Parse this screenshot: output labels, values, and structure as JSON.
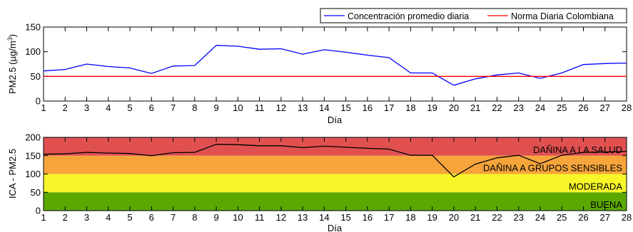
{
  "legend": {
    "items": [
      {
        "label": "Concentración promedio diaria",
        "color": "#0000ff"
      },
      {
        "label": "Norma Diaria Colombiana",
        "color": "#ff0000"
      }
    ]
  },
  "chart_data": [
    {
      "type": "line",
      "xlabel": "Día",
      "ylabel": "PM2.5 (µg/m³)",
      "ylabel_base": "PM2.5 (µg/m",
      "ylabel_sup": "3",
      "ylabel_tail": ")",
      "xlim": [
        1,
        28
      ],
      "ylim": [
        0,
        150
      ],
      "xticks": [
        1,
        2,
        3,
        4,
        5,
        6,
        7,
        8,
        9,
        10,
        11,
        12,
        13,
        14,
        15,
        16,
        17,
        18,
        19,
        20,
        21,
        22,
        23,
        24,
        25,
        26,
        27,
        28
      ],
      "yticks": [
        0,
        50,
        100,
        150
      ],
      "grid": false,
      "legend_position": "top-right",
      "x": [
        1,
        2,
        3,
        4,
        5,
        6,
        7,
        8,
        9,
        10,
        11,
        12,
        13,
        14,
        15,
        16,
        17,
        18,
        19,
        20,
        21,
        22,
        23,
        24,
        25,
        26,
        27,
        28
      ],
      "series": [
        {
          "name": "Concentración promedio diaria",
          "color": "#0000ff",
          "values": [
            61,
            64,
            75,
            70,
            67,
            56,
            71,
            72,
            113,
            111,
            105,
            106,
            95,
            104,
            99,
            93,
            88,
            57,
            57,
            32,
            45,
            53,
            57,
            46,
            57,
            74,
            76,
            77
          ]
        },
        {
          "name": "Norma Diaria Colombiana",
          "color": "#ff0000",
          "values": [
            50,
            50,
            50,
            50,
            50,
            50,
            50,
            50,
            50,
            50,
            50,
            50,
            50,
            50,
            50,
            50,
            50,
            50,
            50,
            50,
            50,
            50,
            50,
            50,
            50,
            50,
            50,
            50
          ]
        }
      ]
    },
    {
      "type": "line",
      "xlabel": "Día",
      "ylabel": "ICA - PM2.5",
      "xlim": [
        1,
        28
      ],
      "ylim": [
        0,
        200
      ],
      "xticks": [
        1,
        2,
        3,
        4,
        5,
        6,
        7,
        8,
        9,
        10,
        11,
        12,
        13,
        14,
        15,
        16,
        17,
        18,
        19,
        20,
        21,
        22,
        23,
        24,
        25,
        26,
        27,
        28
      ],
      "yticks": [
        0,
        50,
        100,
        150,
        200
      ],
      "grid": false,
      "x": [
        1,
        2,
        3,
        4,
        5,
        6,
        7,
        8,
        9,
        10,
        11,
        12,
        13,
        14,
        15,
        16,
        17,
        18,
        19,
        20,
        21,
        22,
        23,
        24,
        25,
        26,
        27,
        28
      ],
      "bands": [
        {
          "label": "BUENA",
          "from": 0,
          "to": 50,
          "color": "#5ba800"
        },
        {
          "label": "MODERADA",
          "from": 50,
          "to": 100,
          "color": "#f6f629"
        },
        {
          "label": "DAÑINA A GRUPOS SENSIBLES",
          "from": 100,
          "to": 150,
          "color": "#f7a53b"
        },
        {
          "label": "DAÑINA A LA SALUD",
          "from": 150,
          "to": 200,
          "color": "#e05050"
        }
      ],
      "series": [
        {
          "color": "#000000",
          "values": [
            154,
            155,
            159,
            157,
            156,
            150,
            158,
            159,
            181,
            180,
            177,
            177,
            172,
            176,
            173,
            170,
            168,
            151,
            151,
            92,
            127,
            144,
            151,
            128,
            151,
            159,
            160,
            162
          ]
        }
      ]
    }
  ]
}
